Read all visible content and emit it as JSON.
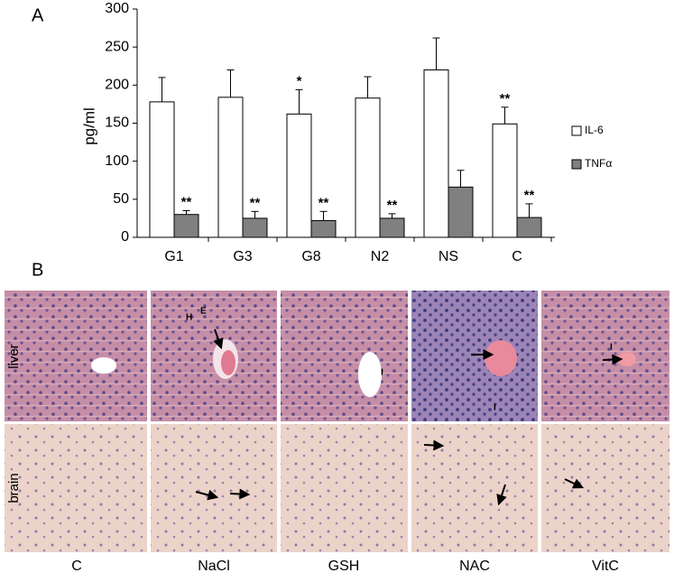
{
  "chart_data": {
    "type": "bar",
    "panel_label": "A",
    "ylabel": "pg/ml",
    "categories": [
      "G1",
      "G3",
      "G8",
      "N2",
      "NS",
      "C"
    ],
    "series": [
      {
        "name": "IL-6",
        "color": "#ffffff",
        "values": [
          178,
          184,
          162,
          183,
          220,
          149
        ],
        "errors": [
          32,
          36,
          32,
          28,
          42,
          22
        ],
        "annotations": [
          null,
          null,
          "*",
          null,
          null,
          "**"
        ]
      },
      {
        "name": "TNFα",
        "color": "#808080",
        "values": [
          30,
          25,
          22,
          25,
          66,
          26
        ],
        "errors": [
          5,
          9,
          12,
          6,
          22,
          18
        ],
        "annotations": [
          "**",
          "**",
          "**",
          "**",
          null,
          "**"
        ]
      }
    ],
    "ylim": [
      0,
      300
    ],
    "yticks": [
      0,
      50,
      100,
      150,
      200,
      250,
      300
    ],
    "legend": "right"
  },
  "histology": {
    "panel_label": "B",
    "rows": [
      "liver",
      "brain"
    ],
    "columns": [
      "C",
      "NaCl",
      "GSH",
      "NAC",
      "VitC"
    ],
    "annotations": [
      "H",
      "E",
      "I",
      "I",
      "I"
    ]
  }
}
